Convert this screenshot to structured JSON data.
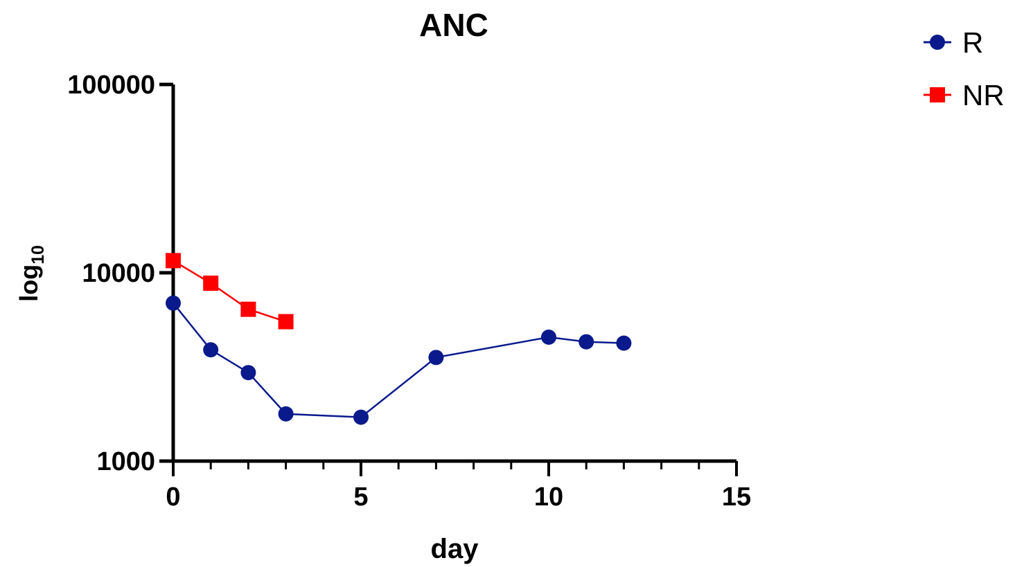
{
  "chart_data": {
    "type": "line",
    "title": "ANC",
    "xlabel": "day",
    "ylabel_main": "log",
    "ylabel_sub": "10",
    "x_scale": "linear",
    "y_scale": "log",
    "xlim": [
      0,
      15
    ],
    "ylim": [
      1000,
      100000
    ],
    "x_ticks": [
      0,
      5,
      10,
      15
    ],
    "x_tick_labels": [
      "0",
      "5",
      "10",
      "15"
    ],
    "x_minor_ticks": [
      1,
      2,
      3,
      4,
      6,
      7,
      8,
      9,
      11,
      12,
      13,
      14
    ],
    "y_ticks": [
      1000,
      10000,
      100000
    ],
    "y_tick_labels": [
      "1000",
      "10000",
      "100000"
    ],
    "grid": false,
    "legend_position": "top-right",
    "series": [
      {
        "name": "R",
        "color": "#0a1a8c",
        "marker": "circle",
        "x": [
          0,
          1,
          2,
          3,
          5,
          7,
          10,
          11,
          12
        ],
        "y": [
          6900,
          3900,
          2950,
          1780,
          1710,
          3550,
          4550,
          4300,
          4230
        ]
      },
      {
        "name": "NR",
        "color": "#ff0000",
        "marker": "square",
        "x": [
          0,
          1,
          2,
          3
        ],
        "y": [
          11600,
          8800,
          6400,
          5500
        ]
      }
    ]
  }
}
